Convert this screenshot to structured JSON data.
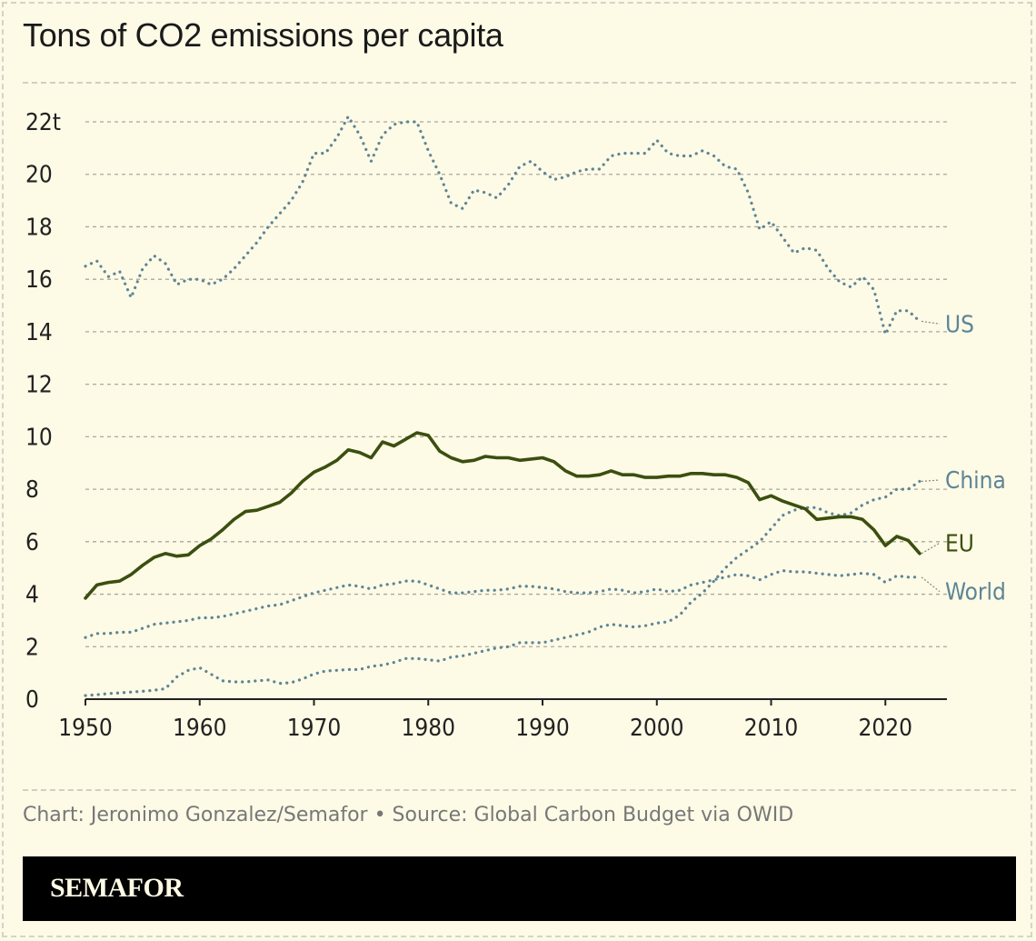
{
  "chart_data": {
    "type": "line",
    "title": "Tons of CO2 emissions per capita",
    "xlabel": "",
    "ylabel": "",
    "xlim": [
      1950,
      2025
    ],
    "ylim": [
      0,
      22
    ],
    "x_ticks": [
      "1950",
      "1960",
      "1970",
      "1980",
      "1990",
      "2000",
      "2010",
      "2020"
    ],
    "y_ticks": [
      "0",
      "2",
      "4",
      "6",
      "8",
      "10",
      "12",
      "14",
      "16",
      "18",
      "20",
      "22t"
    ],
    "grid": "horizontal dotted",
    "legend": "direct labels at line ends",
    "x": [
      1950,
      1951,
      1952,
      1953,
      1954,
      1955,
      1956,
      1957,
      1958,
      1959,
      1960,
      1961,
      1962,
      1963,
      1964,
      1965,
      1966,
      1967,
      1968,
      1969,
      1970,
      1971,
      1972,
      1973,
      1974,
      1975,
      1976,
      1977,
      1978,
      1979,
      1980,
      1981,
      1982,
      1983,
      1984,
      1985,
      1986,
      1987,
      1988,
      1989,
      1990,
      1991,
      1992,
      1993,
      1994,
      1995,
      1996,
      1997,
      1998,
      1999,
      2000,
      2001,
      2002,
      2003,
      2004,
      2005,
      2006,
      2007,
      2008,
      2009,
      2010,
      2011,
      2012,
      2013,
      2014,
      2015,
      2016,
      2017,
      2018,
      2019,
      2020,
      2021,
      2022,
      2023
    ],
    "series": [
      {
        "name": "US",
        "style": "dotted",
        "color": "#5d8596",
        "values": [
          16.5,
          16.7,
          16.1,
          16.3,
          15.3,
          16.4,
          16.9,
          16.6,
          15.8,
          16.0,
          16.0,
          15.8,
          16.0,
          16.4,
          16.9,
          17.4,
          18.0,
          18.5,
          19.0,
          19.7,
          20.8,
          20.8,
          21.4,
          22.2,
          21.5,
          20.5,
          21.5,
          21.9,
          22.0,
          22.0,
          20.9,
          20.0,
          18.9,
          18.7,
          19.4,
          19.3,
          19.1,
          19.6,
          20.3,
          20.5,
          20.1,
          19.8,
          19.9,
          20.1,
          20.2,
          20.2,
          20.7,
          20.8,
          20.8,
          20.8,
          21.3,
          20.8,
          20.7,
          20.7,
          20.9,
          20.7,
          20.3,
          20.2,
          19.3,
          17.9,
          18.2,
          17.6,
          17.0,
          17.2,
          17.1,
          16.4,
          15.9,
          15.7,
          16.1,
          15.6,
          13.9,
          14.8,
          14.8,
          14.4
        ]
      },
      {
        "name": "China",
        "style": "dotted",
        "color": "#5d8596",
        "values": [
          0.14,
          0.17,
          0.21,
          0.24,
          0.27,
          0.3,
          0.34,
          0.4,
          0.85,
          1.1,
          1.2,
          0.95,
          0.7,
          0.66,
          0.66,
          0.7,
          0.73,
          0.6,
          0.63,
          0.77,
          0.96,
          1.07,
          1.1,
          1.13,
          1.13,
          1.25,
          1.3,
          1.4,
          1.55,
          1.55,
          1.5,
          1.45,
          1.6,
          1.65,
          1.75,
          1.85,
          1.95,
          2.0,
          2.15,
          2.15,
          2.15,
          2.25,
          2.35,
          2.45,
          2.55,
          2.75,
          2.85,
          2.8,
          2.75,
          2.8,
          2.9,
          2.95,
          3.2,
          3.7,
          4.05,
          4.5,
          5.0,
          5.4,
          5.7,
          6.0,
          6.5,
          7.0,
          7.2,
          7.3,
          7.3,
          7.1,
          7.0,
          7.1,
          7.4,
          7.6,
          7.7,
          8.0,
          8.0,
          8.3
        ]
      },
      {
        "name": "EU",
        "style": "solid",
        "color": "#3b4f0f",
        "values": [
          3.85,
          4.35,
          4.45,
          4.5,
          4.75,
          5.1,
          5.4,
          5.55,
          5.45,
          5.5,
          5.85,
          6.1,
          6.45,
          6.85,
          7.15,
          7.2,
          7.35,
          7.5,
          7.85,
          8.3,
          8.65,
          8.85,
          9.1,
          9.5,
          9.4,
          9.2,
          9.8,
          9.65,
          9.9,
          10.15,
          10.05,
          9.45,
          9.2,
          9.05,
          9.1,
          9.25,
          9.2,
          9.2,
          9.1,
          9.15,
          9.2,
          9.05,
          8.7,
          8.5,
          8.5,
          8.55,
          8.7,
          8.55,
          8.55,
          8.45,
          8.45,
          8.5,
          8.5,
          8.6,
          8.6,
          8.55,
          8.55,
          8.45,
          8.25,
          7.6,
          7.75,
          7.55,
          7.4,
          7.25,
          6.85,
          6.9,
          6.95,
          6.95,
          6.85,
          6.45,
          5.85,
          6.2,
          6.05,
          5.55
        ]
      },
      {
        "name": "World",
        "style": "dotted",
        "color": "#5d8596",
        "values": [
          2.35,
          2.5,
          2.5,
          2.55,
          2.55,
          2.7,
          2.85,
          2.9,
          2.95,
          3.0,
          3.1,
          3.1,
          3.15,
          3.25,
          3.35,
          3.45,
          3.55,
          3.6,
          3.75,
          3.9,
          4.05,
          4.15,
          4.25,
          4.35,
          4.3,
          4.2,
          4.35,
          4.4,
          4.5,
          4.5,
          4.35,
          4.2,
          4.05,
          4.05,
          4.1,
          4.15,
          4.15,
          4.2,
          4.3,
          4.3,
          4.25,
          4.2,
          4.1,
          4.05,
          4.05,
          4.1,
          4.2,
          4.15,
          4.05,
          4.1,
          4.2,
          4.1,
          4.15,
          4.35,
          4.45,
          4.55,
          4.65,
          4.75,
          4.7,
          4.55,
          4.75,
          4.9,
          4.85,
          4.85,
          4.8,
          4.75,
          4.7,
          4.75,
          4.8,
          4.75,
          4.45,
          4.7,
          4.65,
          4.65
        ]
      }
    ],
    "line_labels": [
      {
        "name": "US",
        "text": "US",
        "color": "#5d8596",
        "label_value": 14.3
      },
      {
        "name": "China",
        "text": "China",
        "color": "#5d8596",
        "label_value": 8.35
      },
      {
        "name": "EU",
        "text": "EU",
        "color": "#3b4f0f",
        "label_value": 5.95
      },
      {
        "name": "World",
        "text": "World",
        "color": "#5d8596",
        "label_value": 4.1
      }
    ]
  },
  "credit": "Chart: Jeronimo Gonzalez/Semafor • Source: Global Carbon Budget via OWID",
  "brand": "SEMAFOR"
}
